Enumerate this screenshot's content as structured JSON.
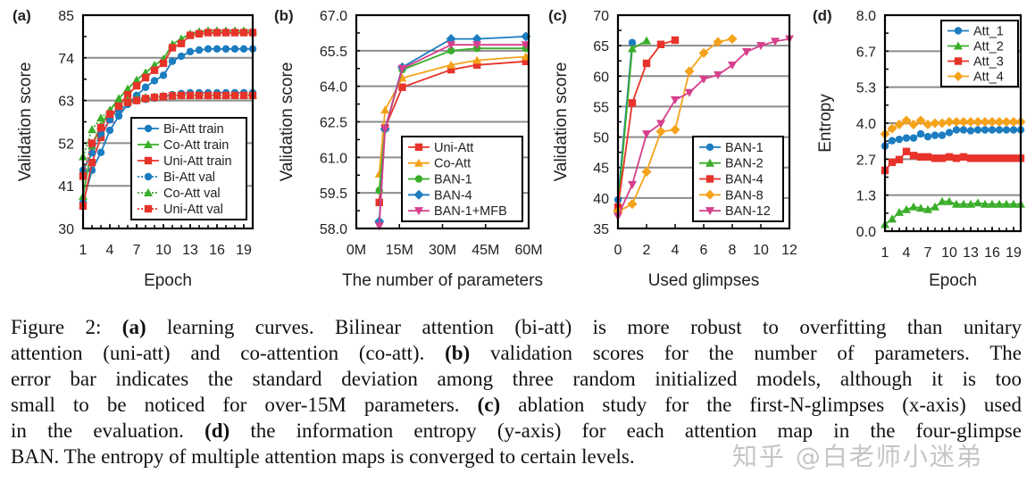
{
  "chart_data": [
    {
      "panel": "(a)",
      "type": "line",
      "xlabel": "Epoch",
      "ylabel": "Validation score",
      "xlim": [
        1,
        20
      ],
      "ylim": [
        30,
        85
      ],
      "xticks": [
        1,
        4,
        7,
        10,
        13,
        16,
        19
      ],
      "xtick_labels": [
        "1",
        "4",
        "7",
        "10",
        "13",
        "16",
        "19"
      ],
      "yticks": [
        30,
        41,
        52,
        63,
        74,
        85
      ],
      "ytick_labels": [
        "30",
        "41",
        "52",
        "63",
        "74",
        "85"
      ],
      "grid": true,
      "legend": "bottom-right",
      "series": [
        {
          "name": "Bi-Att train",
          "color": "#1b7cc0",
          "marker": "circle",
          "dash": false,
          "x": [
            1,
            2,
            3,
            4,
            5,
            6,
            7,
            8,
            9,
            10,
            11,
            12,
            13,
            14,
            15,
            16,
            17,
            18,
            19,
            20
          ],
          "y": [
            36.7,
            45,
            49.6,
            55.3,
            59,
            62,
            64.3,
            66.4,
            68.1,
            69.5,
            73.1,
            74.4,
            75.6,
            76,
            76.3,
            76.3,
            76.3,
            76.3,
            76.3,
            76.3
          ]
        },
        {
          "name": "Co-Att train",
          "color": "#3aae2a",
          "marker": "triangle",
          "dash": false,
          "x": [
            1,
            2,
            3,
            4,
            5,
            6,
            7,
            8,
            9,
            10,
            11,
            12,
            13,
            14,
            15,
            16,
            17,
            18,
            19,
            20
          ],
          "y": [
            38.3,
            51.3,
            56.5,
            60.5,
            63.5,
            66,
            68.3,
            70.2,
            72.1,
            73.7,
            77.5,
            78.9,
            80.2,
            80.8,
            81,
            81,
            81,
            81,
            81,
            81
          ]
        },
        {
          "name": "Uni-Att train",
          "color": "#e8332a",
          "marker": "square",
          "dash": false,
          "x": [
            1,
            2,
            3,
            4,
            5,
            6,
            7,
            8,
            9,
            10,
            11,
            12,
            13,
            14,
            15,
            16,
            17,
            18,
            19,
            20
          ],
          "y": [
            35.8,
            47,
            53.5,
            58.2,
            61.6,
            64.5,
            66.8,
            68.9,
            70.8,
            72.6,
            76.6,
            77.7,
            79.8,
            80.2,
            80.5,
            80.5,
            80.5,
            80.5,
            80.5,
            80.5
          ]
        },
        {
          "name": "Bi-Att val",
          "color": "#1b7cc0",
          "marker": "circle",
          "dash": true,
          "x": [
            1,
            2,
            3,
            4,
            5,
            6,
            7,
            8,
            9,
            10,
            11,
            12,
            13,
            14,
            15,
            16,
            17,
            18,
            19,
            20
          ],
          "y": [
            45,
            49.5,
            54.5,
            58,
            60.5,
            62,
            63,
            63.3,
            63.6,
            64,
            64.5,
            64.8,
            65,
            65,
            65,
            65,
            65,
            65,
            65,
            65
          ]
        },
        {
          "name": "Co-Att val",
          "color": "#3aae2a",
          "marker": "triangle",
          "dash": true,
          "x": [
            1,
            2,
            3,
            4,
            5,
            6,
            7,
            8,
            9,
            10,
            11,
            12,
            13,
            14,
            15,
            16,
            17,
            18,
            19,
            20
          ],
          "y": [
            48.5,
            55.5,
            58.5,
            60.5,
            62.3,
            63,
            63.5,
            63.8,
            64,
            64.2,
            64.3,
            64.4,
            64.4,
            64.4,
            64.4,
            64.4,
            64.4,
            64.4,
            64.4,
            64.4
          ]
        },
        {
          "name": "Uni-Att val",
          "color": "#e8332a",
          "marker": "square",
          "dash": true,
          "x": [
            1,
            2,
            3,
            4,
            5,
            6,
            7,
            8,
            9,
            10,
            11,
            12,
            13,
            14,
            15,
            16,
            17,
            18,
            19,
            20
          ],
          "y": [
            43.5,
            52,
            56,
            59.5,
            61.5,
            62.5,
            63,
            63.5,
            63.8,
            64,
            64.2,
            64.3,
            64.3,
            64.3,
            64.3,
            64.3,
            64.3,
            64.3,
            64.3,
            64.3
          ]
        }
      ]
    },
    {
      "panel": "(b)",
      "type": "line",
      "xlabel": "The number of parameters",
      "ylabel": "Validation score",
      "xlim": [
        0,
        60
      ],
      "ylim": [
        58,
        67
      ],
      "xticks": [
        0,
        15,
        30,
        45,
        60
      ],
      "xtick_labels": [
        "0M",
        "15M",
        "30M",
        "45M",
        "60M"
      ],
      "yticks": [
        58,
        59.5,
        61,
        62.5,
        64,
        65.5,
        67
      ],
      "ytick_labels": [
        "58.0",
        "59.5",
        "61.0",
        "62.5",
        "64.0",
        "65.5",
        "67.0"
      ],
      "grid": true,
      "legend": "bottom-right",
      "series": [
        {
          "name": "Uni-Att",
          "color": "#e8332a",
          "marker": "square",
          "dash": false,
          "x": [
            8,
            10,
            16,
            33,
            42,
            59
          ],
          "y": [
            59.1,
            62.25,
            63.96,
            64.7,
            64.9,
            65.05
          ]
        },
        {
          "name": "Co-Att",
          "color": "#f5a21b",
          "marker": "triangle",
          "dash": false,
          "x": [
            8,
            10,
            16,
            33,
            42,
            59
          ],
          "y": [
            60.3,
            63.0,
            64.35,
            64.9,
            65.1,
            65.25
          ]
        },
        {
          "name": "BAN-1",
          "color": "#3aae2a",
          "marker": "circle",
          "dash": false,
          "x": [
            8,
            10,
            16,
            33,
            42,
            59
          ],
          "y": [
            59.6,
            62.2,
            64.7,
            65.5,
            65.6,
            65.6
          ]
        },
        {
          "name": "BAN-4",
          "color": "#1b7cc0",
          "marker": "diamond",
          "dash": false,
          "x": [
            8,
            10,
            16,
            33,
            42,
            59
          ],
          "y": [
            58.3,
            62.2,
            64.8,
            66.0,
            66.0,
            66.1
          ]
        },
        {
          "name": "BAN-1+MFB",
          "color": "#d63f8c",
          "marker": "tri-down",
          "dash": false,
          "x": [
            8,
            10,
            16,
            33,
            42,
            59
          ],
          "y": [
            58.1,
            62.2,
            64.75,
            65.75,
            65.75,
            65.75
          ]
        }
      ]
    },
    {
      "panel": "(c)",
      "type": "line",
      "xlabel": "Used glimpses",
      "ylabel": "Validation score",
      "xlim": [
        0,
        12
      ],
      "ylim": [
        35,
        70
      ],
      "xticks": [
        0,
        2,
        4,
        6,
        8,
        10,
        12
      ],
      "xtick_labels": [
        "0",
        "2",
        "4",
        "6",
        "8",
        "10",
        "12"
      ],
      "yticks": [
        35,
        40,
        45,
        50,
        55,
        60,
        65,
        70
      ],
      "ytick_labels": [
        "35",
        "40",
        "45",
        "50",
        "55",
        "60",
        "65",
        "70"
      ],
      "grid": true,
      "legend": "bottom-right",
      "series": [
        {
          "name": "BAN-1",
          "color": "#1b7cc0",
          "marker": "circle",
          "dash": false,
          "x": [
            0,
            1
          ],
          "y": [
            39.7,
            65.5
          ]
        },
        {
          "name": "BAN-2",
          "color": "#3aae2a",
          "marker": "triangle",
          "dash": false,
          "x": [
            0,
            1,
            2
          ],
          "y": [
            38.5,
            64.5,
            65.8
          ]
        },
        {
          "name": "BAN-4",
          "color": "#e8332a",
          "marker": "square",
          "dash": false,
          "x": [
            0,
            1,
            2,
            3,
            4
          ],
          "y": [
            38.5,
            55.6,
            62.1,
            65.2,
            65.9
          ]
        },
        {
          "name": "BAN-8",
          "color": "#f5a21b",
          "marker": "diamond",
          "dash": false,
          "x": [
            0,
            1,
            2,
            3,
            4,
            5,
            6,
            7,
            8
          ],
          "y": [
            37.8,
            39,
            44.3,
            50.9,
            51.2,
            60.8,
            63.8,
            65.6,
            66.1
          ]
        },
        {
          "name": "BAN-12",
          "color": "#d63f8c",
          "marker": "tri-down",
          "dash": false,
          "x": [
            0,
            1,
            2,
            3,
            4,
            5,
            6,
            7,
            8,
            9,
            10,
            11,
            12
          ],
          "y": [
            37,
            42.2,
            50.5,
            52.2,
            56.1,
            57.3,
            59.5,
            60.2,
            61.8,
            64,
            65,
            65.7,
            66.1
          ]
        }
      ]
    },
    {
      "panel": "(d)",
      "type": "line",
      "xlabel": "Epoch",
      "ylabel": "Entropy",
      "xlim": [
        1,
        20
      ],
      "ylim": [
        0,
        8
      ],
      "xticks": [
        1,
        4,
        7,
        10,
        13,
        16,
        19
      ],
      "xtick_labels": [
        "1",
        "4",
        "7",
        "10",
        "13",
        "16",
        "19"
      ],
      "yticks": [
        0,
        1.333,
        2.667,
        4,
        5.333,
        6.667,
        8
      ],
      "ytick_labels": [
        "0.0",
        "1.3",
        "2.7",
        "4.0",
        "5.3",
        "6.7",
        "8.0"
      ],
      "grid": true,
      "legend": "top-right",
      "series": [
        {
          "name": "Att_1",
          "color": "#1b7cc0",
          "marker": "circle",
          "dash": false,
          "x": [
            1,
            2,
            3,
            4,
            5,
            6,
            7,
            8,
            9,
            10,
            11,
            12,
            13,
            14,
            15,
            16,
            17,
            18,
            19,
            20
          ],
          "y": [
            3.15,
            3.35,
            3.4,
            3.45,
            3.45,
            3.6,
            3.5,
            3.55,
            3.55,
            3.65,
            3.75,
            3.75,
            3.72,
            3.75,
            3.75,
            3.75,
            3.75,
            3.75,
            3.75,
            3.75
          ]
        },
        {
          "name": "Att_2",
          "color": "#3aae2a",
          "marker": "triangle",
          "dash": false,
          "x": [
            1,
            2,
            3,
            4,
            5,
            6,
            7,
            8,
            9,
            10,
            11,
            12,
            13,
            14,
            15,
            16,
            17,
            18,
            19,
            20
          ],
          "y": [
            0.25,
            0.45,
            0.7,
            0.8,
            0.9,
            0.85,
            0.8,
            0.9,
            1.1,
            1.1,
            1.0,
            1.0,
            1.0,
            1.05,
            1.0,
            1.0,
            1.0,
            1.0,
            1.0,
            1.0
          ]
        },
        {
          "name": "Att_3",
          "color": "#e8332a",
          "marker": "square",
          "dash": false,
          "x": [
            1,
            2,
            3,
            4,
            5,
            6,
            7,
            8,
            9,
            10,
            11,
            12,
            13,
            14,
            15,
            16,
            17,
            18,
            19,
            20
          ],
          "y": [
            2.25,
            2.55,
            2.65,
            2.95,
            2.8,
            2.75,
            2.75,
            2.7,
            2.7,
            2.75,
            2.7,
            2.75,
            2.7,
            2.7,
            2.7,
            2.7,
            2.7,
            2.7,
            2.7,
            2.7
          ]
        },
        {
          "name": "Att_4",
          "color": "#f5a21b",
          "marker": "diamond",
          "dash": false,
          "x": [
            1,
            2,
            3,
            4,
            5,
            6,
            7,
            8,
            9,
            10,
            11,
            12,
            13,
            14,
            15,
            16,
            17,
            18,
            19,
            20
          ],
          "y": [
            3.6,
            3.8,
            3.95,
            4.1,
            3.95,
            4.1,
            3.95,
            4.0,
            4.0,
            4.05,
            4.05,
            4.05,
            4.05,
            4.05,
            4.05,
            4.05,
            4.05,
            4.05,
            4.05,
            4.05
          ]
        }
      ]
    }
  ],
  "caption": {
    "lines": [
      [
        {
          "t": "Figure 2: ",
          "b": false
        },
        {
          "t": "(a)",
          "b": true
        },
        {
          "t": " learning curves.  Bilinear attention (bi-att) is more robust to overfitting than unitary",
          "b": false
        }
      ],
      [
        {
          "t": "attention (uni-att) and co-attention (co-att). ",
          "b": false
        },
        {
          "t": "(b)",
          "b": true
        },
        {
          "t": " validation scores for the number of parameters. The",
          "b": false
        }
      ],
      [
        {
          "t": "error bar indicates the standard deviation among three random initialized models, although it is too",
          "b": false
        }
      ],
      [
        {
          "t": "small to be noticed for over-15M parameters. ",
          "b": false
        },
        {
          "t": "(c)",
          "b": true
        },
        {
          "t": " ablation study for the first-N-glimpses (x-axis) used",
          "b": false
        }
      ],
      [
        {
          "t": "in the evaluation. ",
          "b": false
        },
        {
          "t": "(d)",
          "b": true
        },
        {
          "t": " the information entropy (y-axis) for each attention map in the four-glimpse",
          "b": false
        }
      ],
      [
        {
          "t": "BAN. The entropy of multiple attention maps is converged to certain levels.",
          "b": false
        }
      ]
    ]
  },
  "watermark": "知乎 @白老师小迷弟"
}
